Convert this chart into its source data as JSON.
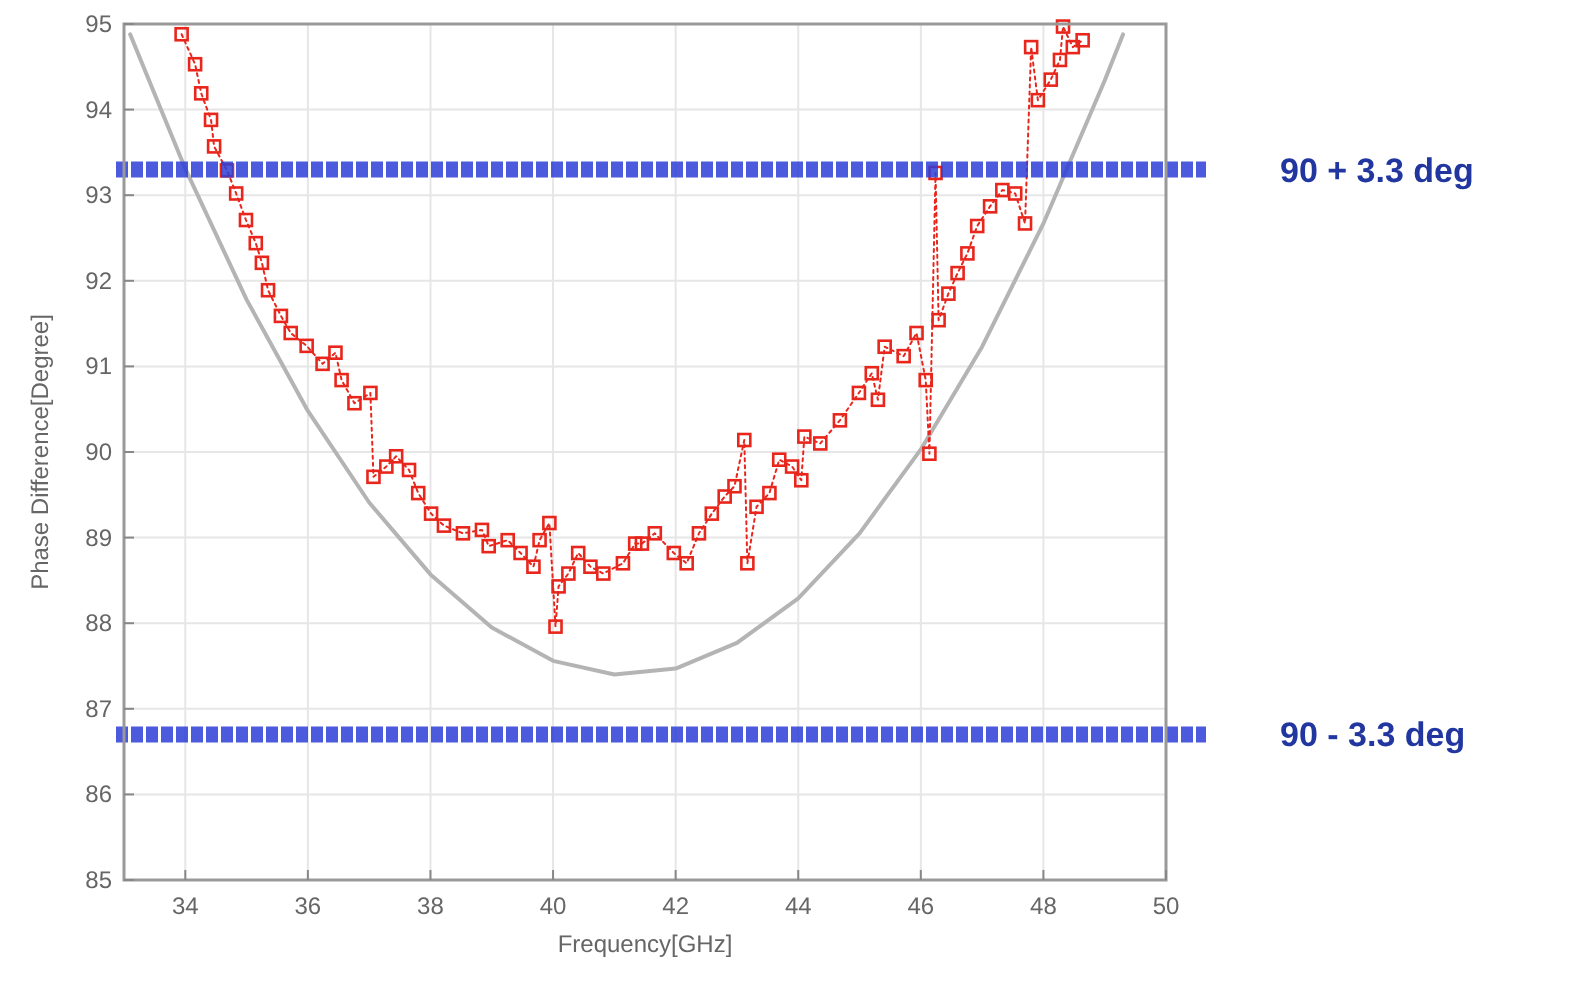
{
  "chart_data": {
    "type": "line",
    "xlabel": "Frequency[GHz]",
    "ylabel": "Phase Difference[Degree]",
    "xlim": [
      33,
      50
    ],
    "xticks": [
      34,
      36,
      38,
      40,
      42,
      44,
      46,
      48,
      50
    ],
    "ylim": [
      85,
      95
    ],
    "yticks": [
      85,
      86,
      87,
      88,
      89,
      90,
      91,
      92,
      93,
      94,
      95
    ],
    "grid": true,
    "series": [
      {
        "color": "#b4b4b4",
        "marker": "none",
        "line_style": "solid",
        "x": [
          33.1,
          34,
          35,
          36,
          37,
          38,
          39,
          40,
          41,
          42,
          43,
          44,
          45,
          46,
          47,
          48,
          49,
          49.3
        ],
        "values": [
          94.88,
          93.31,
          91.78,
          90.48,
          89.41,
          88.57,
          87.95,
          87.56,
          87.4,
          87.47,
          87.77,
          88.29,
          89.05,
          90.03,
          91.23,
          92.67,
          94.34,
          94.88
        ]
      },
      {
        "color": "#e8261c",
        "marker": "square",
        "line_style": "dotted",
        "x": [
          33.94,
          34.16,
          34.26,
          34.42,
          34.47,
          34.68,
          34.83,
          34.99,
          35.15,
          35.25,
          35.35,
          35.56,
          35.72,
          35.98,
          36.24,
          36.45,
          36.55,
          36.76,
          37.02,
          37.07,
          37.28,
          37.44,
          37.65,
          37.8,
          38.01,
          38.22,
          38.53,
          38.84,
          38.95,
          39.26,
          39.47,
          39.68,
          39.78,
          39.94,
          40.04,
          40.09,
          40.25,
          40.41,
          40.61,
          40.82,
          41.14,
          41.34,
          41.45,
          41.66,
          41.97,
          42.18,
          42.38,
          42.59,
          42.8,
          42.96,
          43.12,
          43.17,
          43.32,
          43.53,
          43.69,
          43.9,
          44.05,
          44.1,
          44.36,
          44.68,
          44.99,
          45.2,
          45.3,
          45.41,
          45.72,
          45.93,
          46.08,
          46.14,
          46.24,
          46.29,
          46.45,
          46.6,
          46.76,
          46.92,
          47.13,
          47.33,
          47.54,
          47.7,
          47.8,
          47.91,
          48.12,
          48.27,
          48.32,
          48.48,
          48.64
        ],
        "values": [
          94.88,
          94.53,
          94.19,
          93.88,
          93.57,
          93.29,
          93.02,
          92.71,
          92.44,
          92.21,
          91.89,
          91.59,
          91.39,
          91.24,
          91.03,
          91.16,
          90.84,
          90.57,
          90.69,
          89.71,
          89.83,
          89.95,
          89.79,
          89.52,
          89.28,
          89.14,
          89.05,
          89.09,
          88.9,
          88.97,
          88.82,
          88.66,
          88.97,
          89.17,
          87.96,
          88.43,
          88.58,
          88.82,
          88.66,
          88.58,
          88.7,
          88.93,
          88.93,
          89.05,
          88.82,
          88.7,
          89.05,
          89.28,
          89.48,
          89.6,
          90.14,
          88.7,
          89.36,
          89.52,
          89.91,
          89.83,
          89.67,
          90.18,
          90.1,
          90.37,
          90.69,
          90.92,
          90.61,
          91.23,
          91.12,
          91.39,
          90.84,
          89.98,
          93.26,
          91.54,
          91.85,
          92.09,
          92.32,
          92.64,
          92.87,
          93.06,
          93.02,
          92.67,
          94.73,
          94.11,
          94.35,
          94.58,
          94.97,
          94.73,
          94.81
        ]
      }
    ],
    "ref_lines": [
      {
        "axis": "y",
        "value": 93.3,
        "label": "90 + 3.3 deg",
        "color": "#2d3fd8",
        "line_style": "dashed"
      },
      {
        "axis": "y",
        "value": 86.7,
        "label": "90 - 3.3 deg",
        "color": "#2d3fd8",
        "line_style": "dashed"
      }
    ]
  }
}
